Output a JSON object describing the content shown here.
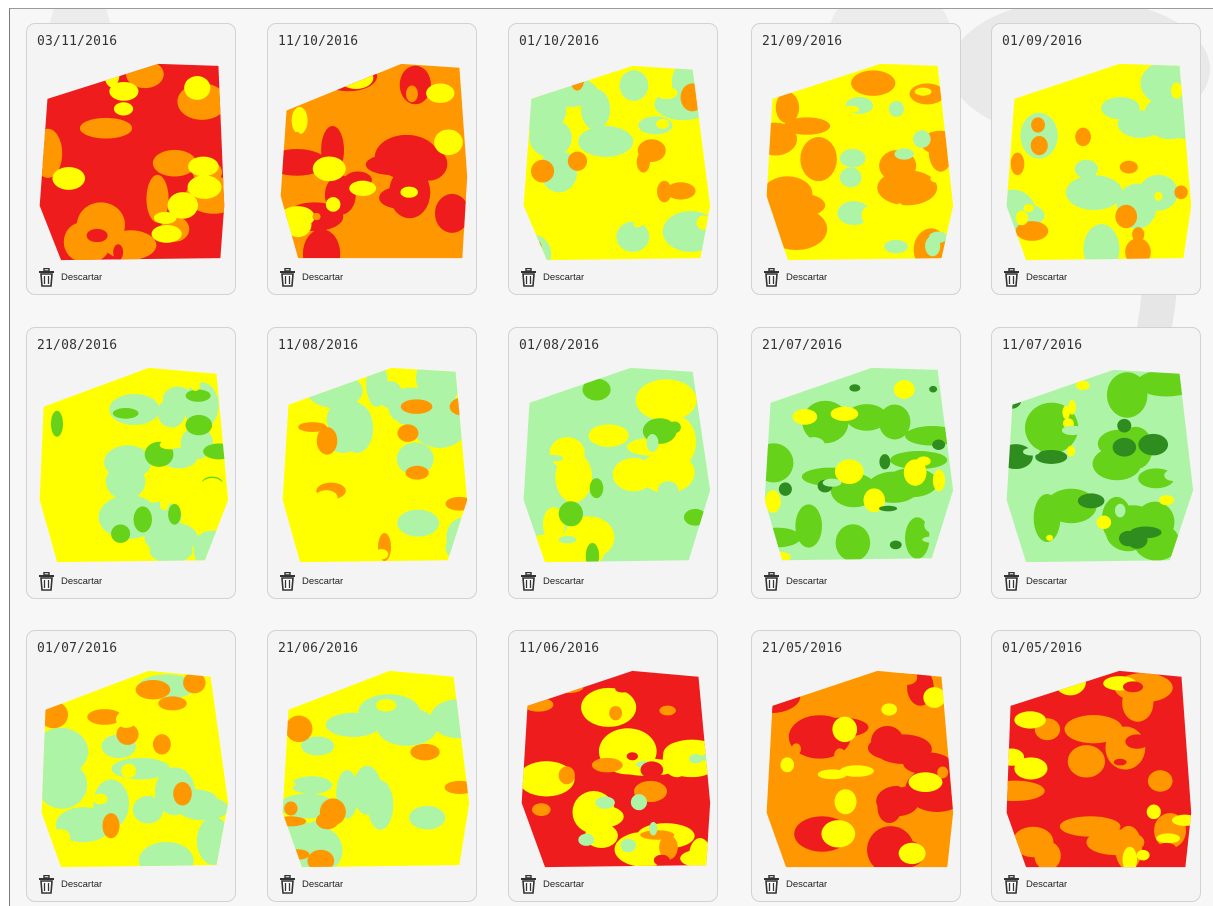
{
  "colors": {
    "red": "#ee1c1c",
    "orange": "#ff9800",
    "yellow": "#ffff00",
    "light_green": "#aef4a6",
    "green": "#66d21a",
    "dark_green": "#2f8c1f"
  },
  "cards": [
    {
      "date": "03/11/2016",
      "discard_label": "Descartar",
      "palette": [
        "red",
        "orange",
        "yellow"
      ]
    },
    {
      "date": "11/10/2016",
      "discard_label": "Descartar",
      "palette": [
        "orange",
        "red",
        "yellow"
      ]
    },
    {
      "date": "01/10/2016",
      "discard_label": "Descartar",
      "palette": [
        "yellow",
        "light_green",
        "orange"
      ]
    },
    {
      "date": "21/09/2016",
      "discard_label": "Descartar",
      "palette": [
        "yellow",
        "orange",
        "light_green"
      ]
    },
    {
      "date": "01/09/2016",
      "discard_label": "Descartar",
      "palette": [
        "yellow",
        "light_green",
        "orange"
      ]
    },
    {
      "date": "21/08/2016",
      "discard_label": "Descartar",
      "palette": [
        "yellow",
        "light_green",
        "green"
      ]
    },
    {
      "date": "11/08/2016",
      "discard_label": "Descartar",
      "palette": [
        "yellow",
        "light_green",
        "orange"
      ]
    },
    {
      "date": "01/08/2016",
      "discard_label": "Descartar",
      "palette": [
        "light_green",
        "yellow",
        "green"
      ]
    },
    {
      "date": "21/07/2016",
      "discard_label": "Descartar",
      "palette": [
        "light_green",
        "green",
        "yellow",
        "dark_green"
      ]
    },
    {
      "date": "11/07/2016",
      "discard_label": "Descartar",
      "palette": [
        "light_green",
        "green",
        "dark_green",
        "yellow"
      ]
    },
    {
      "date": "01/07/2016",
      "discard_label": "Descartar",
      "palette": [
        "yellow",
        "light_green",
        "orange"
      ]
    },
    {
      "date": "21/06/2016",
      "discard_label": "Descartar",
      "palette": [
        "yellow",
        "light_green",
        "orange"
      ]
    },
    {
      "date": "11/06/2016",
      "discard_label": "Descartar",
      "palette": [
        "red",
        "yellow",
        "orange",
        "light_green"
      ]
    },
    {
      "date": "21/05/2016",
      "discard_label": "Descartar",
      "palette": [
        "orange",
        "red",
        "yellow"
      ]
    },
    {
      "date": "01/05/2016",
      "discard_label": "Descartar",
      "palette": [
        "red",
        "orange",
        "yellow"
      ]
    }
  ]
}
